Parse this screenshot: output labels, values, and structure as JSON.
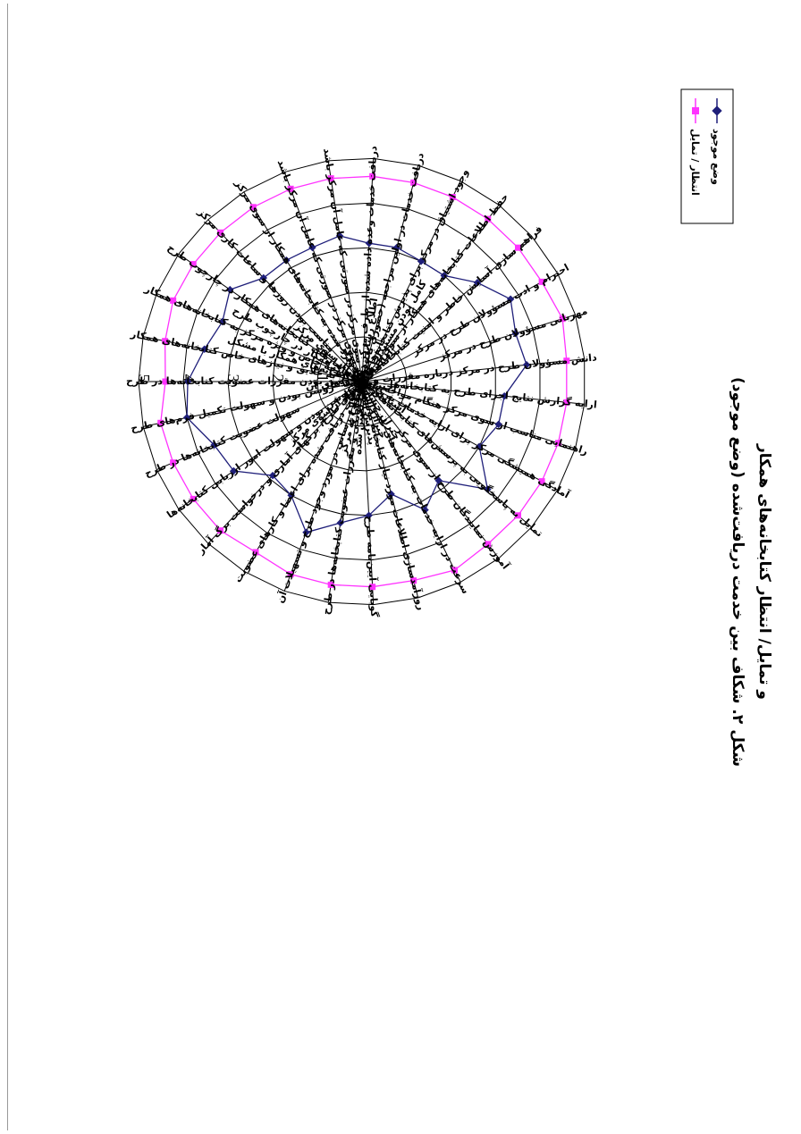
{
  "caption": {
    "line1": "شکل ۲. شکاف بین خدمت دریافت‌شده (وضع موجود)",
    "line2": "و تمایل/ انتظار کتابخانه‌های همکار"
  },
  "colors": {
    "current": "#1f1f7a",
    "expected": "#ff33ff",
    "grid": "#000000"
  },
  "chart_data": {
    "type": "radar",
    "title": "",
    "rlim": [
      1,
      5
    ],
    "r_ticks": [
      "1",
      "2",
      "3",
      "4",
      "5"
    ],
    "legend_position": "right",
    "categories": [
      "روشن بودن مقررات عضویت کتابخانه‌ها در طرح",
      "روشن بودن و سهولت تکمیل فرم‌های طرح",
      "سهولت عضویت کتابخانه‌ها در طرح",
      "روشن بودن و سهولت امور ارزیابی کتابخانه‌ها",
      "امانت، راهنمای طرح، برگهای آماری و درخواست برگ آمار",
      "کامل بودن مستندات و اطلاعات دریافت شده برای اعضا و کارهای عضویت",
      "اطلاع رسانی در مورد وجود طرح و تسهیلات آن",
      "اطلاع رسانی درباره چگونگی و مقررات عضویت کتابخانه‌ها در طرح",
      "گویایی آیین‌نامه طرح",
      "روزآمدسازی اطلاعات مورد نیاز کتابخانه توسط مرکز",
      "سرعت در ارایه خدمات به کتابخانه‌های عضو از سوی مرکز",
      "آموزش نمایندگان طرح از سوی مرکز",
      "تمایل به پاسخگویی به پرسش‌های کتابخانه‌های همکار از سوی مرکز",
      "آمادگی همیشگی مرکز برای ارایه خدمات به کتابخانه‌های همکار در چارچوب طرح",
      "راهنمایی مناسب از سوی مرکز هنگام مواجه شدن کتابخانه‌های همکار با مشکل",
      "ارایه گزارش نتایج اجرای طرح به کتابخانه‌ها",
      "دانش مسؤولان طرح در مرکز درباره مقررات و فرایندهای آن",
      "مهربانی مسؤولان طرح در مرکز",
      "احترام و ادب مسؤولان طرح در مرکز",
      "فراهم سازی آسایش خاطر و امنیت کتابخانه‌های همکار از سوی مرکز",
      "حفظ اطلاعات کتابخانه‌های همکار از سوی مرکز",
      "وجود اشتیاق در مرکز برای پذیرش کتابخانه‌ها در طرح",
      "دریافت خدمات در اولین مراجعه (حضوری یا غیرحضوری) به مرکز",
      "دریافت خدمات وعده داده شده از طرف مرکز در مدت تعیین شده",
      "پذیرش اشتباه از سوی مرکز در صورتی که عامل آن مرکز باشد",
      "جبران اشتباه از سوی مرکز در صورتی که عامل آن مرکز باشد",
      "جبران خسارتهای وارد شده به کتابخانه‌های همکار از سوی مرکز",
      "مناسب بودن روزها و ساعات کاری مرکز",
      "آشنایی مرکز با نیازهای کتابخانه‌های همکار در چارچوب طرح",
      "توجه خاص و ویژه مرکز به کتابخانه‌های همکار",
      "احترام مرکز به علایق و نیازهای خاص کتابخانه‌های همکار"
    ],
    "series": [
      {
        "name": "وضع موجود",
        "values": [
          3.9,
          4.0,
          3.6,
          3.5,
          2.9,
          3.0,
          3.6,
          3.2,
          3.0,
          2.6,
          3.2,
          2.8,
          3.7,
          3.0,
          3.2,
          3.2,
          3.7,
          3.6,
          3.8,
          3.4,
          3.0,
          3.0,
          3.1,
          3.1,
          3.3,
          3.2,
          3.2,
          3.2,
          3.6,
          3.4,
          3.6
        ]
      },
      {
        "name": "انتظار / تمایل",
        "values": [
          4.4,
          4.6,
          4.6,
          4.6,
          4.6,
          4.5,
          4.6,
          4.6,
          4.6,
          4.6,
          4.7,
          4.6,
          4.6,
          4.6,
          4.6,
          4.6,
          4.6,
          4.7,
          4.6,
          4.6,
          4.6,
          4.6,
          4.6,
          4.6,
          4.6,
          4.6,
          4.6,
          4.6,
          4.6,
          4.6,
          4.5
        ]
      }
    ]
  }
}
